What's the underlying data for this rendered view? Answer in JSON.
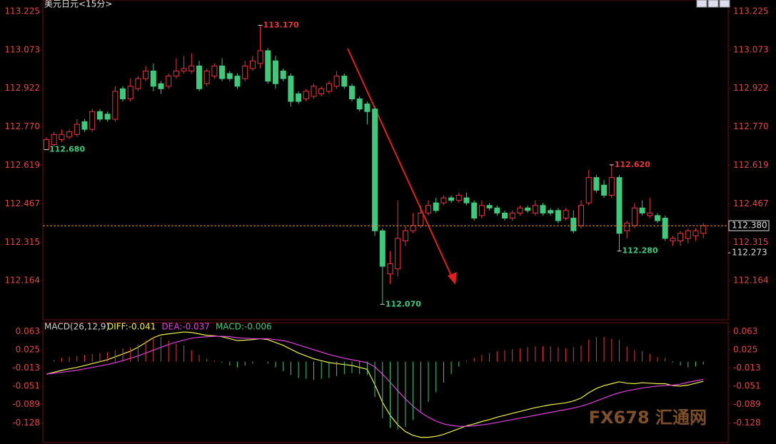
{
  "chart_data": [
    {
      "type": "candlestick",
      "title": "美元日元<15分>",
      "open": [
        112.68,
        112.7,
        112.72,
        112.73,
        112.74,
        112.79,
        112.76,
        112.83,
        112.82,
        112.8,
        112.92,
        112.88,
        112.92,
        112.96,
        112.99,
        112.94,
        112.93,
        112.97,
        112.99,
        112.99,
        113.01,
        112.94,
        112.97,
        113.01,
        112.98,
        112.97,
        112.96,
        113.0,
        113.02,
        113.07,
        113.03,
        112.99,
        112.97,
        112.9,
        112.88,
        112.89,
        112.9,
        112.91,
        112.93,
        112.97,
        112.93,
        112.88,
        112.86,
        112.84,
        112.36,
        112.19,
        112.21,
        112.32,
        112.36,
        112.38,
        112.43,
        112.47,
        112.47,
        112.49,
        112.48,
        112.49,
        112.47,
        112.42,
        112.46,
        112.45,
        112.43,
        112.41,
        112.43,
        112.45,
        112.43,
        112.46,
        112.44,
        112.44,
        112.41,
        112.41,
        112.38,
        112.47,
        112.57,
        112.54,
        112.5,
        112.57,
        112.36,
        112.38,
        112.45,
        112.42,
        112.42,
        112.41,
        112.32,
        112.32,
        112.33,
        112.34,
        112.35
      ],
      "high": [
        112.73,
        112.75,
        112.76,
        112.76,
        112.8,
        112.8,
        112.84,
        112.84,
        112.83,
        112.93,
        112.93,
        112.96,
        112.97,
        113.01,
        113.02,
        112.95,
        112.98,
        113.04,
        113.05,
        113.06,
        113.03,
        113.0,
        113.02,
        113.04,
        112.99,
        112.98,
        113.03,
        113.05,
        113.17,
        113.08,
        113.05,
        113.0,
        112.98,
        112.91,
        112.92,
        112.94,
        112.93,
        112.95,
        112.99,
        112.98,
        112.94,
        112.89,
        112.87,
        112.85,
        112.37,
        112.28,
        112.48,
        112.38,
        112.43,
        112.46,
        112.48,
        112.49,
        112.5,
        112.5,
        112.51,
        112.51,
        112.48,
        112.48,
        112.47,
        112.46,
        112.44,
        112.44,
        112.46,
        112.46,
        112.48,
        112.47,
        112.45,
        112.45,
        112.45,
        112.44,
        112.48,
        112.6,
        112.58,
        112.56,
        112.62,
        112.58,
        112.4,
        112.47,
        112.48,
        112.49,
        112.43,
        112.42,
        112.34,
        112.36,
        112.37,
        112.37,
        112.39
      ],
      "low": [
        112.68,
        112.69,
        112.71,
        112.72,
        112.73,
        112.75,
        112.75,
        112.79,
        112.79,
        112.79,
        112.87,
        112.87,
        112.91,
        112.95,
        112.91,
        112.9,
        112.92,
        112.96,
        112.98,
        112.98,
        112.91,
        112.93,
        112.96,
        112.95,
        112.95,
        112.92,
        112.95,
        112.99,
        113.0,
        112.94,
        112.92,
        112.95,
        112.85,
        112.86,
        112.87,
        112.88,
        112.89,
        112.9,
        112.92,
        112.92,
        112.87,
        112.83,
        112.78,
        112.34,
        112.07,
        112.15,
        112.18,
        112.3,
        112.35,
        112.37,
        112.42,
        112.43,
        112.46,
        112.47,
        112.47,
        112.46,
        112.4,
        112.41,
        112.44,
        112.42,
        112.4,
        112.4,
        112.42,
        112.43,
        112.42,
        112.42,
        112.42,
        112.39,
        112.4,
        112.35,
        112.37,
        112.46,
        112.51,
        112.49,
        112.49,
        112.28,
        112.33,
        112.37,
        112.42,
        112.41,
        112.39,
        112.32,
        112.3,
        112.3,
        112.31,
        112.32,
        112.33
      ],
      "close": [
        112.72,
        112.74,
        112.74,
        112.75,
        112.78,
        112.76,
        112.83,
        112.8,
        112.8,
        112.91,
        112.88,
        112.93,
        112.96,
        112.99,
        112.93,
        112.92,
        112.97,
        112.99,
        113.0,
        113.01,
        112.92,
        112.99,
        113.01,
        112.96,
        112.96,
        112.93,
        113.01,
        113.03,
        113.07,
        112.95,
        112.94,
        112.96,
        112.87,
        112.87,
        112.91,
        112.93,
        112.92,
        112.94,
        112.97,
        112.93,
        112.88,
        112.84,
        112.83,
        112.36,
        112.22,
        112.23,
        112.33,
        112.36,
        112.38,
        112.43,
        112.46,
        112.44,
        112.49,
        112.48,
        112.5,
        112.47,
        112.41,
        112.46,
        112.45,
        112.43,
        112.41,
        112.43,
        112.45,
        112.44,
        112.46,
        112.43,
        112.43,
        112.4,
        112.44,
        112.36,
        112.46,
        112.57,
        112.52,
        112.5,
        112.57,
        112.35,
        112.39,
        112.45,
        112.43,
        112.43,
        112.4,
        112.33,
        112.33,
        112.35,
        112.36,
        112.36,
        112.38
      ],
      "up_color": "#e8383d",
      "down_color": "#40c97c",
      "ylim": [
        112.009,
        113.27
      ],
      "yticks": [
        113.225,
        113.073,
        112.922,
        {
          "value": 112.77,
          "label": "112.770"
        },
        112.619,
        112.467,
        112.315,
        112.164
      ],
      "annotations": [
        {
          "value": 113.17,
          "label": "113.170",
          "color": "#e8383d",
          "at": "high"
        },
        {
          "value": 112.68,
          "label": "112.680",
          "color": "#40c97c",
          "at": "low"
        },
        {
          "value": 112.07,
          "label": "112.070",
          "color": "#40c97c",
          "at": "low"
        },
        {
          "value": 112.62,
          "label": "112.620",
          "color": "#e8383d",
          "at": "high"
        },
        {
          "value": 112.28,
          "label": "112.280",
          "color": "#40c97c",
          "at": "low"
        }
      ],
      "last_price": {
        "value": 112.38,
        "label": "112.380"
      },
      "price_marker": {
        "value": 112.273,
        "label": "112.273"
      }
    },
    {
      "type": "macd",
      "indicator": "MACD(26,12,9)",
      "series": [
        {
          "name": "DIFF:-0.041",
          "color": "#f2f24a",
          "values": [
            -0.026,
            -0.022,
            -0.018,
            -0.015,
            -0.012,
            -0.008,
            -0.004,
            0.0,
            0.004,
            0.01,
            0.016,
            0.022,
            0.03,
            0.04,
            0.05,
            0.056,
            0.058,
            0.06,
            0.062,
            0.061,
            0.058,
            0.055,
            0.054,
            0.052,
            0.048,
            0.044,
            0.045,
            0.046,
            0.048,
            0.046,
            0.04,
            0.034,
            0.026,
            0.018,
            0.012,
            0.006,
            0.002,
            -0.002,
            -0.004,
            -0.006,
            -0.008,
            -0.012,
            -0.016,
            -0.048,
            -0.085,
            -0.112,
            -0.132,
            -0.146,
            -0.154,
            -0.158,
            -0.158,
            -0.156,
            -0.152,
            -0.146,
            -0.14,
            -0.134,
            -0.13,
            -0.125,
            -0.121,
            -0.116,
            -0.112,
            -0.108,
            -0.104,
            -0.1,
            -0.096,
            -0.093,
            -0.09,
            -0.088,
            -0.086,
            -0.082,
            -0.076,
            -0.065,
            -0.056,
            -0.05,
            -0.046,
            -0.042,
            -0.045,
            -0.046,
            -0.044,
            -0.045,
            -0.046,
            -0.046,
            -0.05,
            -0.051,
            -0.049,
            -0.045,
            -0.041
          ]
        },
        {
          "name": "DEA:-0.037",
          "color": "#e040e0",
          "values": [
            -0.026,
            -0.024,
            -0.022,
            -0.02,
            -0.018,
            -0.015,
            -0.012,
            -0.009,
            -0.006,
            -0.002,
            0.002,
            0.007,
            0.012,
            0.018,
            0.024,
            0.03,
            0.036,
            0.041,
            0.045,
            0.049,
            0.051,
            0.052,
            0.053,
            0.053,
            0.052,
            0.05,
            0.049,
            0.048,
            0.048,
            0.048,
            0.046,
            0.044,
            0.04,
            0.035,
            0.03,
            0.025,
            0.02,
            0.015,
            0.011,
            0.007,
            0.004,
            0.001,
            -0.002,
            -0.011,
            -0.026,
            -0.043,
            -0.061,
            -0.078,
            -0.093,
            -0.106,
            -0.116,
            -0.124,
            -0.13,
            -0.133,
            -0.135,
            -0.135,
            -0.134,
            -0.132,
            -0.13,
            -0.127,
            -0.124,
            -0.121,
            -0.118,
            -0.115,
            -0.112,
            -0.109,
            -0.106,
            -0.103,
            -0.1,
            -0.097,
            -0.093,
            -0.088,
            -0.082,
            -0.076,
            -0.07,
            -0.065,
            -0.061,
            -0.058,
            -0.055,
            -0.053,
            -0.051,
            -0.05,
            -0.049,
            -0.047,
            -0.043,
            -0.04,
            -0.037
          ]
        },
        {
          "name": "MACD:-0.006",
          "color": "#40c97c",
          "up_color": "#e8383d",
          "bars": true,
          "values": [
            0,
            0.004,
            0.008,
            0.01,
            0.012,
            0.014,
            0.016,
            0.018,
            0.02,
            0.024,
            0.028,
            0.03,
            0.036,
            0.044,
            0.052,
            0.052,
            0.044,
            0.038,
            0.034,
            0.024,
            0.014,
            0.006,
            0.002,
            -0.002,
            -0.008,
            -0.012,
            -0.008,
            -0.004,
            0,
            -0.004,
            -0.012,
            -0.02,
            -0.028,
            -0.034,
            -0.036,
            -0.038,
            -0.036,
            -0.034,
            -0.03,
            -0.026,
            -0.024,
            -0.026,
            -0.028,
            -0.074,
            -0.118,
            -0.138,
            -0.142,
            -0.136,
            -0.122,
            -0.104,
            -0.084,
            -0.064,
            -0.044,
            -0.026,
            -0.01,
            0.002,
            0.008,
            0.014,
            0.018,
            0.022,
            0.024,
            0.026,
            0.028,
            0.03,
            0.032,
            0.032,
            0.032,
            0.03,
            0.028,
            0.03,
            0.034,
            0.046,
            0.052,
            0.052,
            0.048,
            0.046,
            0.032,
            0.024,
            0.022,
            0.016,
            0.01,
            0.008,
            -0.002,
            -0.008,
            -0.012,
            -0.01,
            -0.006
          ]
        }
      ],
      "ylim": [
        -0.169,
        0.0815
      ],
      "yticks": [
        0.063,
        0.025,
        -0.013,
        -0.051,
        -0.089,
        -0.128
      ]
    }
  ],
  "watermark": "FX678 汇通网"
}
